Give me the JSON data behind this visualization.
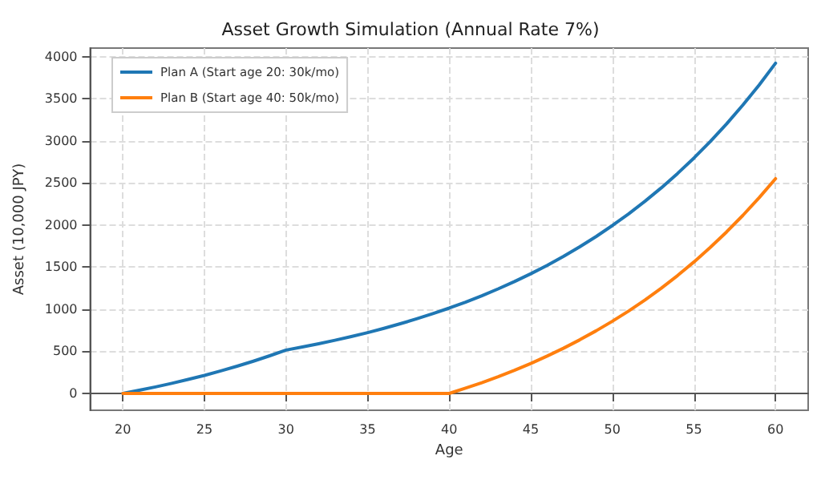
{
  "chart_data": {
    "type": "line",
    "title": "Asset Growth Simulation (Annual Rate 7%)",
    "xlabel": "Age",
    "ylabel": "Asset (10,000 JPY)",
    "x": [
      20,
      21,
      22,
      23,
      24,
      25,
      26,
      27,
      28,
      29,
      30,
      31,
      32,
      33,
      34,
      35,
      36,
      37,
      38,
      39,
      40,
      41,
      42,
      43,
      44,
      45,
      46,
      47,
      48,
      49,
      50,
      51,
      52,
      53,
      54,
      55,
      56,
      57,
      58,
      59,
      60
    ],
    "series": [
      {
        "name": "Plan A (Start age 20: 30k/mo)",
        "color": "#1f77b4",
        "values": [
          0,
          37,
          77,
          120,
          166,
          214,
          267,
          323,
          383,
          447,
          515,
          551,
          590,
          631,
          675,
          722,
          773,
          827,
          885,
          947,
          1013,
          1084,
          1160,
          1241,
          1328,
          1421,
          1520,
          1627,
          1741,
          1862,
          1993,
          2132,
          2282,
          2441,
          2612,
          2795,
          2990,
          3200,
          3424,
          3663,
          3920
        ]
      },
      {
        "name": "Plan B (Start age 40: 50k/mo)",
        "color": "#ff7f0e",
        "values": [
          0,
          0,
          0,
          0,
          0,
          0,
          0,
          0,
          0,
          0,
          0,
          0,
          0,
          0,
          0,
          0,
          0,
          0,
          0,
          0,
          0,
          62,
          128,
          199,
          275,
          356,
          443,
          536,
          636,
          743,
          857,
          979,
          1110,
          1250,
          1400,
          1561,
          1733,
          1917,
          2114,
          2325,
          2550
        ]
      }
    ],
    "xlim": [
      18,
      62
    ],
    "xticks": [
      20,
      25,
      30,
      35,
      40,
      45,
      50,
      55,
      60
    ],
    "ylim": [
      -200,
      4100
    ],
    "yticks": [
      0,
      500,
      1000,
      1500,
      2000,
      2500,
      3000,
      3500,
      4000
    ],
    "grid": true,
    "line_style": "solid",
    "marker": "none",
    "legend": "top left"
  }
}
